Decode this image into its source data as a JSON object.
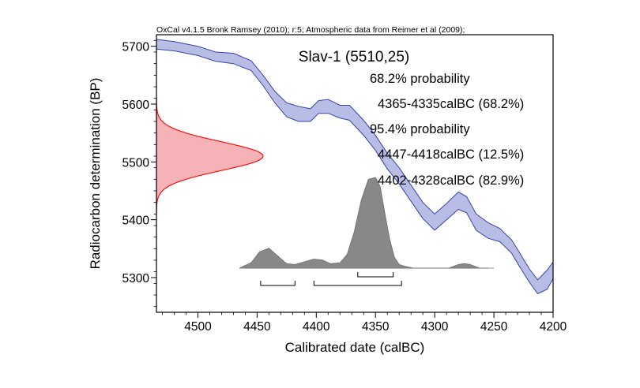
{
  "chart_data": {
    "type": "area",
    "credit": "OxCal v4.1.5 Bronk Ramsey (2010); r:5; Atmospheric data from Reimer et al (2009);",
    "title": "Slav-1 (5510,25)",
    "xlabel": "Calibrated date (calBC)",
    "ylabel": "Radiocarbon determination (BP)",
    "xlim": [
      4535,
      4200
    ],
    "ylim": [
      5240,
      5720
    ],
    "x_ticks": [
      4500,
      4450,
      4400,
      4350,
      4300,
      4250,
      4200
    ],
    "y_ticks": [
      5700,
      5600,
      5500,
      5400,
      5300
    ],
    "annotations": [
      "68.2% probability",
      "4365-4335calBC (68.2%)",
      "95.4% probability",
      "4447-4418calBC (12.5%)",
      "4402-4328calBC (82.9%)"
    ],
    "calibration_curve": {
      "x": [
        4535,
        4520,
        4500,
        4485,
        4470,
        4455,
        4445,
        4435,
        4425,
        4415,
        4405,
        4398,
        4390,
        4380,
        4372,
        4360,
        4350,
        4340,
        4330,
        4320,
        4310,
        4300,
        4290,
        4280,
        4273,
        4265,
        4255,
        4245,
        4235,
        4228,
        4220,
        4213,
        4205,
        4200
      ],
      "upper": [
        5712,
        5708,
        5700,
        5690,
        5688,
        5675,
        5650,
        5622,
        5602,
        5596,
        5592,
        5606,
        5608,
        5598,
        5598,
        5572,
        5546,
        5515,
        5490,
        5460,
        5430,
        5410,
        5428,
        5448,
        5440,
        5410,
        5395,
        5385,
        5365,
        5342,
        5315,
        5296,
        5313,
        5327
      ],
      "lower": [
        5695,
        5692,
        5684,
        5674,
        5670,
        5658,
        5632,
        5602,
        5578,
        5570,
        5570,
        5584,
        5584,
        5576,
        5572,
        5546,
        5520,
        5488,
        5462,
        5432,
        5402,
        5382,
        5400,
        5418,
        5412,
        5382,
        5368,
        5362,
        5342,
        5318,
        5292,
        5272,
        5280,
        5298
      ]
    },
    "measurement": {
      "mean": 5510,
      "sigma": 25,
      "color": "#ff0000",
      "fill": "#f5b3b8"
    },
    "posterior": {
      "x": [
        4465,
        4455,
        4448,
        4440,
        4433,
        4425,
        4418,
        4410,
        4402,
        4395,
        4388,
        4380,
        4374,
        4368,
        4362,
        4356,
        4350,
        4346,
        4342,
        4338,
        4334,
        4330,
        4325,
        4318,
        4310,
        4300,
        4288,
        4280,
        4275,
        4270,
        4262,
        4250
      ],
      "density": [
        0.0,
        0.06,
        0.18,
        0.22,
        0.14,
        0.05,
        0.04,
        0.07,
        0.1,
        0.09,
        0.05,
        0.06,
        0.15,
        0.4,
        0.75,
        0.98,
        1.0,
        0.9,
        0.6,
        0.32,
        0.12,
        0.04,
        0.02,
        0.0,
        0.0,
        0.0,
        0.0,
        0.04,
        0.05,
        0.04,
        0.0,
        0.0
      ],
      "baseline_x": [
        4460,
        4255
      ],
      "fill": "#888888"
    },
    "ranges_68": [
      [
        4365,
        4335
      ]
    ],
    "ranges_95": [
      [
        4447,
        4418
      ],
      [
        4402,
        4328
      ]
    ],
    "curve_color": "#3a43a8",
    "curve_fill": "#b8bde6"
  }
}
